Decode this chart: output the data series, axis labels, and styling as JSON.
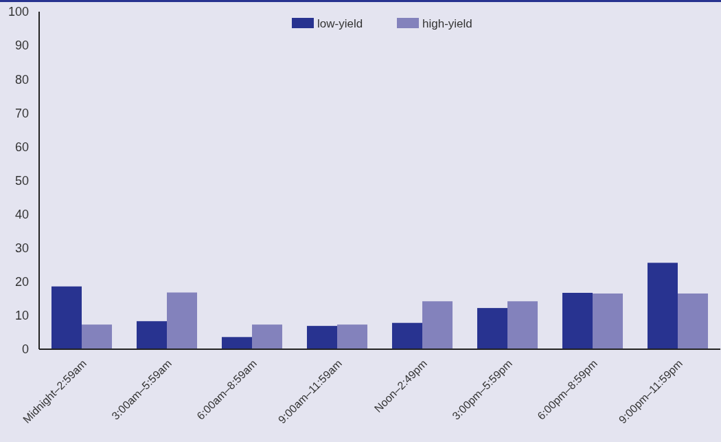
{
  "chart_data": {
    "type": "bar",
    "categories": [
      "Midnight–2:59am",
      "3:00am–5:59am",
      "6:00am–8:59am",
      "9:00am–11:59am",
      "Noon–2:49pm",
      "3:00pm–5:59pm",
      "6:00pm–8:59pm",
      "9:00pm–11:59pm"
    ],
    "series": [
      {
        "name": "low-yield",
        "color": "#283390",
        "values": [
          18.6,
          8.3,
          3.6,
          6.9,
          7.8,
          12.2,
          16.7,
          25.6
        ]
      },
      {
        "name": "high-yield",
        "color": "#8382bc",
        "values": [
          7.3,
          16.8,
          7.3,
          7.3,
          14.2,
          14.2,
          16.5,
          16.5
        ]
      }
    ],
    "ylim": [
      0,
      100
    ],
    "yticks": [
      0,
      10,
      20,
      30,
      40,
      50,
      60,
      70,
      80,
      90,
      100
    ],
    "legend": "top",
    "grid": false
  }
}
